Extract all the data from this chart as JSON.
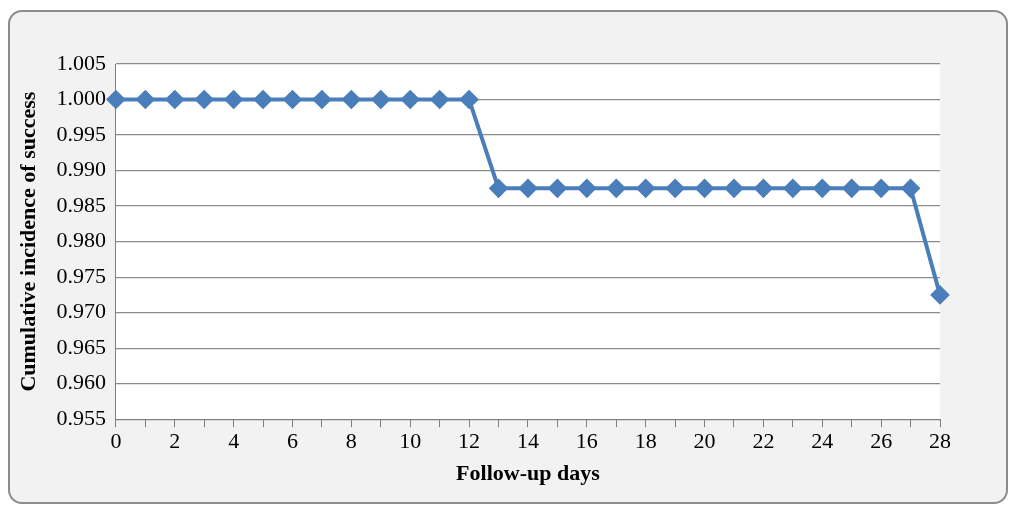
{
  "chart_data": {
    "type": "line",
    "xlabel": "Follow-up days",
    "ylabel": "Cumulative incidence of success",
    "x": [
      0,
      1,
      2,
      3,
      4,
      5,
      6,
      7,
      8,
      9,
      10,
      11,
      12,
      13,
      14,
      15,
      16,
      17,
      18,
      19,
      20,
      21,
      22,
      23,
      24,
      25,
      26,
      27,
      28
    ],
    "series": [
      {
        "color": "#4a7ebb",
        "values": [
          1.0,
          1.0,
          1.0,
          1.0,
          1.0,
          1.0,
          1.0,
          1.0,
          1.0,
          1.0,
          1.0,
          1.0,
          1.0,
          0.9875,
          0.9875,
          0.9875,
          0.9875,
          0.9875,
          0.9875,
          0.9875,
          0.9875,
          0.9875,
          0.9875,
          0.9875,
          0.9875,
          0.9875,
          0.9875,
          0.9875,
          0.9725
        ]
      }
    ],
    "xlim": [
      0,
      28
    ],
    "xticks": [
      0,
      {
        "value": 1,
        "label": null
      },
      2,
      {
        "value": 3,
        "label": null
      },
      4,
      {
        "value": 5,
        "label": null
      },
      6,
      {
        "value": 7,
        "label": null
      },
      8,
      {
        "value": 9,
        "label": null
      },
      10,
      {
        "value": 11,
        "label": null
      },
      12,
      {
        "value": 13,
        "label": null
      },
      14,
      {
        "value": 15,
        "label": null
      },
      16,
      {
        "value": 17,
        "label": null
      },
      18,
      {
        "value": 19,
        "label": null
      },
      20,
      {
        "value": 21,
        "label": null
      },
      22,
      {
        "value": 23,
        "label": null
      },
      24,
      {
        "value": 25,
        "label": null
      },
      26,
      {
        "value": 27,
        "label": null
      },
      28
    ],
    "ylim": [
      0.955,
      1.005
    ],
    "yticks": [
      {
        "value": 0.955,
        "label": "0.955"
      },
      {
        "value": 0.96,
        "label": "0.960"
      },
      {
        "value": 0.965,
        "label": "0.965"
      },
      {
        "value": 0.97,
        "label": "0.970"
      },
      {
        "value": 0.975,
        "label": "0.975"
      },
      {
        "value": 0.98,
        "label": "0.980"
      },
      {
        "value": 0.985,
        "label": "0.985"
      },
      {
        "value": 0.99,
        "label": "0.990"
      },
      {
        "value": 0.995,
        "label": "0.995"
      },
      {
        "value": 1.0,
        "label": "1.000"
      },
      {
        "value": 1.005,
        "label": "1.005"
      }
    ],
    "grid": "y",
    "marker": "diamond",
    "line_style": "solid",
    "legend": false
  }
}
